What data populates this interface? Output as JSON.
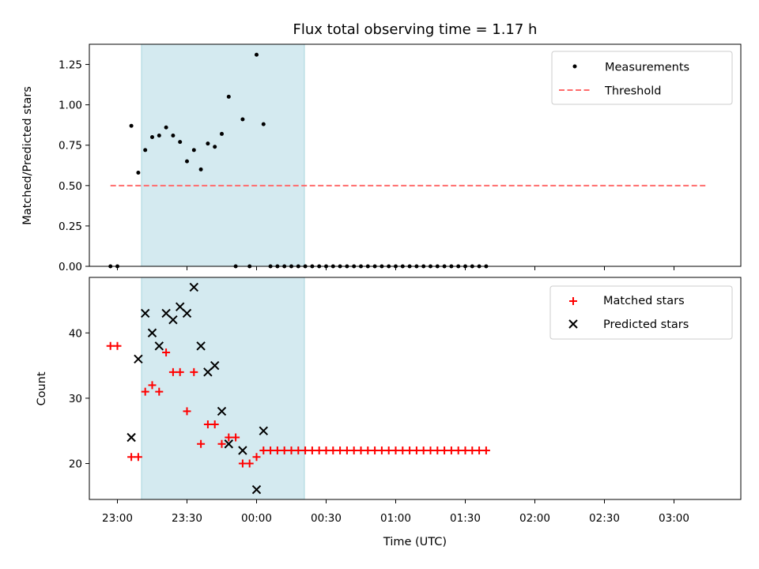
{
  "title": "Flux total observing time = 1.17 h",
  "colors": {
    "measure": "#000000",
    "threshold": "#ff6b6b",
    "matched": "#ff0000",
    "predicted": "#000000",
    "shade_fill": "#d4eaf0",
    "shade_edge": "#a8d6de"
  },
  "chart_data": [
    {
      "type": "scatter",
      "ylabel": "Matched/Predicted stars",
      "ylim": [
        0,
        1.375
      ],
      "yticks": [
        0,
        0.25,
        0.5,
        0.75,
        1.0,
        1.25
      ],
      "ytick_labels": [
        "0.00",
        "0.25",
        "0.50",
        "0.75",
        "1.00",
        "1.25"
      ],
      "legend": {
        "placement": "upper right",
        "entries": [
          "Measurements",
          "Threshold"
        ]
      },
      "threshold": {
        "name": "Threshold",
        "value": 0.5,
        "x_range": [
          "22:57",
          "03:14"
        ]
      },
      "series": [
        {
          "name": "Measurements",
          "marker": "dot",
          "points": [
            [
              "22:57",
              0
            ],
            [
              "23:00",
              0
            ],
            [
              "23:06",
              0.87
            ],
            [
              "23:09",
              0.58
            ],
            [
              "23:12",
              0.72
            ],
            [
              "23:15",
              0.8
            ],
            [
              "23:18",
              0.81
            ],
            [
              "23:21",
              0.86
            ],
            [
              "23:24",
              0.81
            ],
            [
              "23:27",
              0.77
            ],
            [
              "23:30",
              0.65
            ],
            [
              "23:33",
              0.72
            ],
            [
              "23:36",
              0.6
            ],
            [
              "23:39",
              0.76
            ],
            [
              "23:42",
              0.74
            ],
            [
              "23:45",
              0.82
            ],
            [
              "23:48",
              1.05
            ],
            [
              "23:51",
              0
            ],
            [
              "23:54",
              0.91
            ],
            [
              "23:57",
              0
            ],
            [
              "00:00",
              1.31
            ],
            [
              "00:03",
              0.88
            ],
            [
              "00:06",
              0
            ],
            [
              "00:09",
              0
            ],
            [
              "00:12",
              0
            ],
            [
              "00:15",
              0
            ],
            [
              "00:18",
              0
            ],
            [
              "00:21",
              0
            ],
            [
              "00:24",
              0
            ],
            [
              "00:27",
              0
            ],
            [
              "00:30",
              0
            ],
            [
              "00:33",
              0
            ],
            [
              "00:36",
              0
            ],
            [
              "00:39",
              0
            ],
            [
              "00:42",
              0
            ],
            [
              "00:45",
              0
            ],
            [
              "00:48",
              0
            ],
            [
              "00:51",
              0
            ],
            [
              "00:54",
              0
            ],
            [
              "00:57",
              0
            ],
            [
              "01:00",
              0
            ],
            [
              "01:03",
              0
            ],
            [
              "01:06",
              0
            ],
            [
              "01:09",
              0
            ],
            [
              "01:12",
              0
            ],
            [
              "01:15",
              0
            ],
            [
              "01:18",
              0
            ],
            [
              "01:21",
              0
            ],
            [
              "01:24",
              0
            ],
            [
              "01:27",
              0
            ],
            [
              "01:30",
              0
            ],
            [
              "01:33",
              0
            ],
            [
              "01:36",
              0
            ],
            [
              "01:39",
              0
            ]
          ]
        }
      ]
    },
    {
      "type": "scatter",
      "title": "",
      "xlabel": "Time (UTC)",
      "ylabel": "Count",
      "ylim": [
        14.5,
        48.5
      ],
      "yticks": [
        20,
        30,
        40
      ],
      "ytick_labels": [
        "20",
        "30",
        "40"
      ],
      "xticks": [
        "23:00",
        "23:30",
        "00:00",
        "00:30",
        "01:00",
        "01:30",
        "02:00",
        "02:30",
        "03:00"
      ],
      "legend": {
        "placement": "upper right",
        "entries": [
          "Matched stars",
          "Predicted stars"
        ]
      },
      "series": [
        {
          "name": "Matched stars",
          "marker": "plus",
          "points": [
            [
              "22:57",
              38
            ],
            [
              "23:00",
              38
            ],
            [
              "23:06",
              21
            ],
            [
              "23:09",
              21
            ],
            [
              "23:12",
              31
            ],
            [
              "23:15",
              32
            ],
            [
              "23:18",
              31
            ],
            [
              "23:21",
              37
            ],
            [
              "23:24",
              34
            ],
            [
              "23:27",
              34
            ],
            [
              "23:30",
              28
            ],
            [
              "23:33",
              34
            ],
            [
              "23:36",
              23
            ],
            [
              "23:39",
              26
            ],
            [
              "23:42",
              26
            ],
            [
              "23:45",
              23
            ],
            [
              "23:48",
              24
            ],
            [
              "23:51",
              24
            ],
            [
              "23:54",
              20
            ],
            [
              "23:57",
              20
            ],
            [
              "00:00",
              21
            ],
            [
              "00:03",
              22
            ],
            [
              "00:06",
              22
            ],
            [
              "00:09",
              22
            ],
            [
              "00:12",
              22
            ],
            [
              "00:15",
              22
            ],
            [
              "00:18",
              22
            ],
            [
              "00:21",
              22
            ],
            [
              "00:24",
              22
            ],
            [
              "00:27",
              22
            ],
            [
              "00:30",
              22
            ],
            [
              "00:33",
              22
            ],
            [
              "00:36",
              22
            ],
            [
              "00:39",
              22
            ],
            [
              "00:42",
              22
            ],
            [
              "00:45",
              22
            ],
            [
              "00:48",
              22
            ],
            [
              "00:51",
              22
            ],
            [
              "00:54",
              22
            ],
            [
              "00:57",
              22
            ],
            [
              "01:00",
              22
            ],
            [
              "01:03",
              22
            ],
            [
              "01:06",
              22
            ],
            [
              "01:09",
              22
            ],
            [
              "01:12",
              22
            ],
            [
              "01:15",
              22
            ],
            [
              "01:18",
              22
            ],
            [
              "01:21",
              22
            ],
            [
              "01:24",
              22
            ],
            [
              "01:27",
              22
            ],
            [
              "01:30",
              22
            ],
            [
              "01:33",
              22
            ],
            [
              "01:36",
              22
            ],
            [
              "01:39",
              22
            ]
          ]
        },
        {
          "name": "Predicted stars",
          "marker": "x",
          "points": [
            [
              "23:06",
              24
            ],
            [
              "23:09",
              36
            ],
            [
              "23:12",
              43
            ],
            [
              "23:15",
              40
            ],
            [
              "23:18",
              38
            ],
            [
              "23:21",
              43
            ],
            [
              "23:24",
              42
            ],
            [
              "23:27",
              44
            ],
            [
              "23:30",
              43
            ],
            [
              "23:33",
              47
            ],
            [
              "23:36",
              38
            ],
            [
              "23:39",
              34
            ],
            [
              "23:42",
              35
            ],
            [
              "23:45",
              28
            ],
            [
              "23:48",
              23
            ],
            [
              "23:54",
              22
            ],
            [
              "00:00",
              16
            ],
            [
              "00:03",
              25
            ]
          ]
        }
      ]
    }
  ]
}
